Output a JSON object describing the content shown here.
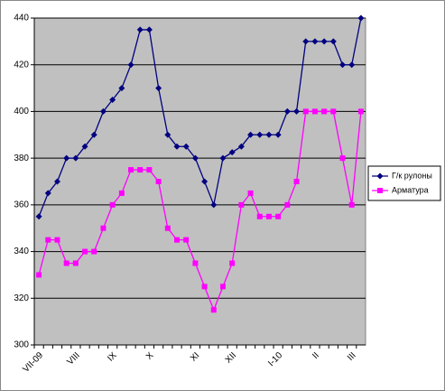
{
  "chart_data": {
    "type": "line",
    "categories": [
      "VII-09",
      null,
      null,
      null,
      "VIII",
      null,
      null,
      null,
      "IX",
      null,
      null,
      null,
      "X",
      null,
      null,
      null,
      null,
      "XI",
      null,
      null,
      null,
      "XII",
      null,
      null,
      null,
      null,
      "I-10",
      null,
      null,
      null,
      "II",
      null,
      null,
      null,
      "III",
      null
    ],
    "series": [
      {
        "name": "Г/к рулоны",
        "color": "#000080",
        "marker": "diamond",
        "values": [
          355,
          365,
          370,
          380,
          380,
          385,
          390,
          400,
          405,
          410,
          420,
          435,
          435,
          410,
          390,
          385,
          385,
          380,
          370,
          360,
          380,
          382.5,
          385,
          390,
          390,
          390,
          390,
          400,
          400,
          430,
          430,
          430,
          430,
          420,
          420,
          440
        ]
      },
      {
        "name": "Арматура",
        "color": "#ff00ff",
        "marker": "square",
        "values": [
          330,
          345,
          345,
          335,
          335,
          340,
          340,
          350,
          360,
          365,
          375,
          375,
          375,
          370,
          350,
          345,
          345,
          335,
          325,
          315,
          325,
          335,
          360,
          365,
          355,
          355,
          355,
          360,
          370,
          400,
          400,
          400,
          400,
          380,
          360,
          400
        ]
      }
    ],
    "ylim": [
      300,
      440
    ],
    "yticks": [
      300,
      320,
      340,
      360,
      380,
      400,
      420,
      440
    ],
    "grid": true,
    "legend": "right",
    "plot_background": "#c0c0c0"
  }
}
